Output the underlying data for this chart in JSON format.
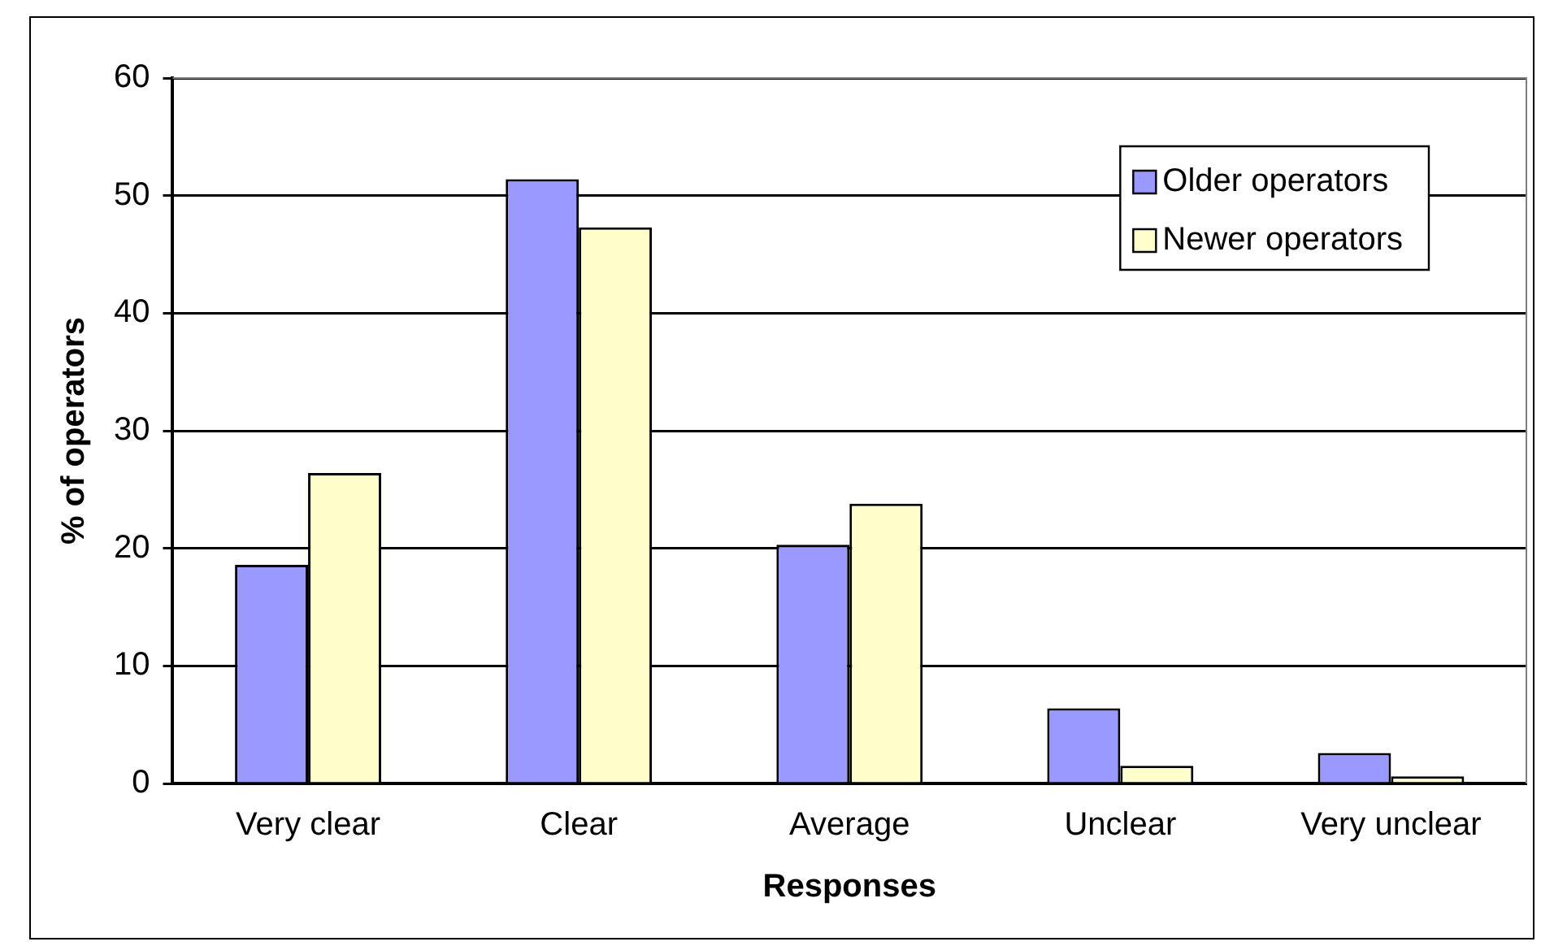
{
  "chart_data": {
    "type": "bar",
    "xlabel": "Responses",
    "ylabel": "% of operators",
    "categories": [
      "Very clear",
      "Clear",
      "Average",
      "Unclear",
      "Very unclear"
    ],
    "series": [
      {
        "name": "Older operators",
        "color": "#9999ff",
        "values": [
          18.6,
          51.4,
          20.3,
          6.4,
          2.6
        ]
      },
      {
        "name": "Newer operators",
        "color": "#ffffcc",
        "values": [
          26.4,
          47.3,
          23.8,
          1.5,
          0.6
        ]
      }
    ],
    "ylim": [
      0,
      60
    ],
    "yticks": [
      0,
      10,
      20,
      30,
      40,
      50,
      60
    ],
    "grid": "y",
    "legend": "top right"
  }
}
